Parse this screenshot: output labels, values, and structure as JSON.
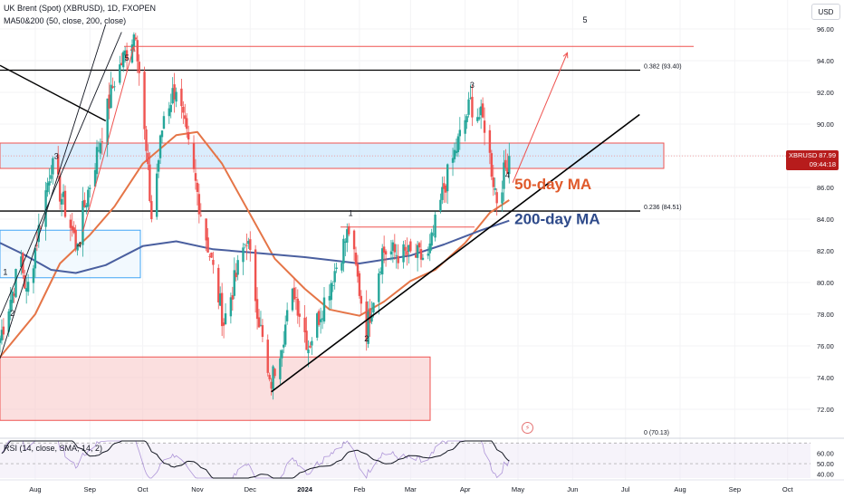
{
  "header": {
    "title": "UK Brent (Spot) (XBRUSD), 1D, FXOPEN",
    "indicator": "MA50&200 (50, close, 200, close)"
  },
  "currency_button": "USD",
  "price_tag": {
    "symbol": "XBRUSD",
    "price": "87.99",
    "countdown": "09:44:18"
  },
  "rsi_label": "RSI (14, close, SMA, 14, 2)",
  "lightning_icon": "lightning-icon",
  "colors": {
    "up": "#26a69a",
    "down": "#ef5350",
    "ma50": "#e57547",
    "ma200": "#4a5f9f",
    "zone_blue": "#bbdefb",
    "zone_red": "#f8c4c4",
    "rsi": "#131722"
  },
  "chart_data": {
    "type": "candlestick",
    "symbol": "XBRUSD",
    "ylim": [
      71,
      97
    ],
    "y_ticks": [
      72,
      74,
      76,
      78,
      80,
      82,
      84,
      86,
      88,
      90,
      92,
      94,
      96
    ],
    "y_tick_labels": [
      "72.00",
      "74.00",
      "76.00",
      "78.00",
      "80.00",
      "82.00",
      "84.00",
      "86.00",
      "88.00",
      "90.00",
      "92.00",
      "94.00",
      "96.00"
    ],
    "x_ticks": [
      "2023-08-01",
      "2023-09-01",
      "2023-10-01",
      "2023-11-01",
      "2023-12-01",
      "2024-01-01",
      "2024-02-01",
      "2024-03-01",
      "2024-04-01",
      "2024-05-01",
      "2024-06-01",
      "2024-07-01",
      "2024-08-01",
      "2024-09-01",
      "2024-10-01"
    ],
    "x_tick_labels": [
      "Aug",
      "Sep",
      "Oct",
      "Nov",
      "Dec",
      "2024",
      "Feb",
      "Mar",
      "Apr",
      "May",
      "Jun",
      "Jul",
      "Aug",
      "Sep",
      "Oct"
    ],
    "xlim": [
      "2023-07-12",
      "2024-10-14"
    ],
    "anchors": [
      [
        "2023-07-12",
        76.5
      ],
      [
        "2023-07-24",
        81.5
      ],
      [
        "2023-07-27",
        79.2
      ],
      [
        "2023-08-10",
        87.5
      ],
      [
        "2023-08-24",
        82.5
      ],
      [
        "2023-09-15",
        92.8
      ],
      [
        "2023-09-27",
        96.0
      ],
      [
        "2023-10-06",
        84.1
      ],
      [
        "2023-10-13",
        90.6
      ],
      [
        "2023-10-20",
        92.4
      ],
      [
        "2023-11-03",
        84.5
      ],
      [
        "2023-11-16",
        77.5
      ],
      [
        "2023-11-29",
        82.9
      ],
      [
        "2023-12-12",
        73.3
      ],
      [
        "2023-12-26",
        79.5
      ],
      [
        "2024-01-03",
        76.0
      ],
      [
        "2024-01-26",
        83.3
      ],
      [
        "2024-02-05",
        77.0
      ],
      [
        "2024-02-14",
        82.0
      ],
      [
        "2024-03-11",
        81.5
      ],
      [
        "2024-03-20",
        86.0
      ],
      [
        "2024-04-04",
        91.3
      ],
      [
        "2024-04-12",
        90.0
      ],
      [
        "2024-04-17",
        86.5
      ],
      [
        "2024-04-19",
        85.3
      ],
      [
        "2024-04-26",
        87.99
      ]
    ],
    "last_price": 87.99,
    "horizontal_levels": [
      {
        "y": 93.4,
        "label": "0.382 (93.40)"
      },
      {
        "y": 84.51,
        "label": "0.236 (84.51)"
      },
      {
        "y": 70.13,
        "label": "0 (70.13)"
      },
      {
        "y": 94.9,
        "label": ""
      },
      {
        "y": 83.5,
        "label": ""
      }
    ],
    "zones": [
      {
        "name": "blue-resistance-zone",
        "y": [
          87.2,
          88.8
        ]
      },
      {
        "name": "left-support-box",
        "y": [
          80.3,
          83.3
        ]
      },
      {
        "name": "red-demand-zone",
        "y": [
          71.3,
          75.3
        ]
      }
    ],
    "moving_averages": [
      {
        "name": "50-day MA",
        "color": "#e57547",
        "points": [
          [
            "2023-07-12",
            75.3
          ],
          [
            "2023-08-01",
            78
          ],
          [
            "2023-08-15",
            81.2
          ],
          [
            "2023-09-01",
            83
          ],
          [
            "2023-09-15",
            84.8
          ],
          [
            "2023-10-01",
            87.5
          ],
          [
            "2023-10-20",
            89.3
          ],
          [
            "2023-11-01",
            89.5
          ],
          [
            "2023-11-15",
            87.5
          ],
          [
            "2023-12-01",
            84.3
          ],
          [
            "2023-12-15",
            81.5
          ],
          [
            "2024-01-01",
            79.6
          ],
          [
            "2024-01-15",
            78.3
          ],
          [
            "2024-02-01",
            77.9
          ],
          [
            "2024-02-15",
            78.8
          ],
          [
            "2024-03-01",
            80.1
          ],
          [
            "2024-03-15",
            80.8
          ],
          [
            "2024-04-01",
            82.5
          ],
          [
            "2024-04-15",
            84.4
          ],
          [
            "2024-04-26",
            85.2
          ]
        ]
      },
      {
        "name": "200-day MA",
        "color": "#4a5f9f",
        "points": [
          [
            "2023-07-12",
            82.5
          ],
          [
            "2023-07-25",
            81.8
          ],
          [
            "2023-08-10",
            80.8
          ],
          [
            "2023-08-24",
            80.6
          ],
          [
            "2023-09-10",
            81.1
          ],
          [
            "2023-10-01",
            82.3
          ],
          [
            "2023-10-20",
            82.6
          ],
          [
            "2023-11-10",
            82.1
          ],
          [
            "2023-12-01",
            81.9
          ],
          [
            "2024-01-01",
            81.6
          ],
          [
            "2024-02-01",
            81.2
          ],
          [
            "2024-03-01",
            81.7
          ],
          [
            "2024-03-20",
            82.4
          ],
          [
            "2024-04-10",
            83.3
          ],
          [
            "2024-04-26",
            83.9
          ]
        ]
      }
    ],
    "annotations": [
      {
        "text": "50-day MA",
        "color": "#e05a2b",
        "x": "2024-04-29",
        "y": 85.9
      },
      {
        "text": "200-day MA",
        "color": "#2e4a8a",
        "x": "2024-04-29",
        "y": 83.7
      },
      {
        "text": "5",
        "x": "2024-06-08",
        "y": 96.4
      },
      {
        "text": "5",
        "x": "2023-09-22",
        "y": 94.0
      },
      {
        "text": "3",
        "x": "2023-08-13",
        "y": 87.8
      },
      {
        "text": "4",
        "x": "2023-08-26",
        "y": 82.2
      },
      {
        "text": "1",
        "x": "2023-07-15",
        "y": 80.5
      },
      {
        "text": "2",
        "x": "2023-07-19",
        "y": 77.9
      },
      {
        "text": "1",
        "x": "2024-01-27",
        "y": 84.2
      },
      {
        "text": "2",
        "x": "2024-02-05",
        "y": 76.3
      },
      {
        "text": "3",
        "x": "2024-04-05",
        "y": 92.3
      },
      {
        "text": "4",
        "x": "2024-04-25",
        "y": 86.6
      }
    ],
    "trendlines": [
      {
        "from": [
          "2023-12-13",
          73.1
        ],
        "to": [
          "2024-07-09",
          90.6
        ],
        "color": "#000000"
      },
      {
        "from": [
          "2023-07-12",
          93.7
        ],
        "to": [
          "2023-09-10",
          90.2
        ],
        "color": "#000000"
      },
      {
        "from": [
          "2023-07-12",
          75.2
        ],
        "to": [
          "2023-09-10",
          96.3
        ],
        "color": "#131722"
      },
      {
        "from": [
          "2023-07-12",
          77.8
        ],
        "to": [
          "2023-09-19",
          95.8
        ],
        "color": "#131722"
      },
      {
        "from": [
          "2023-09-09",
          93.3
        ],
        "to": [
          "2023-09-09",
          93.3
        ],
        "color": "#131722"
      }
    ],
    "projection_arrows": [
      {
        "from": [
          "2024-04-28",
          86.3
        ],
        "to": [
          "2024-05-29",
          94.5
        ],
        "color": "#ef5350"
      },
      {
        "from": [
          "2023-08-28",
          83.2
        ],
        "to": [
          "2023-09-26",
          94.9
        ],
        "color": "#ef5350"
      }
    ],
    "rsi": {
      "label": "RSI (14, close, SMA, 14, 2)",
      "ylim": [
        36,
        72
      ],
      "ticks": [
        40,
        50,
        60
      ],
      "tick_labels": [
        "40.00",
        "50.00",
        "60.00"
      ],
      "levels": [
        70,
        50,
        30
      ]
    }
  }
}
